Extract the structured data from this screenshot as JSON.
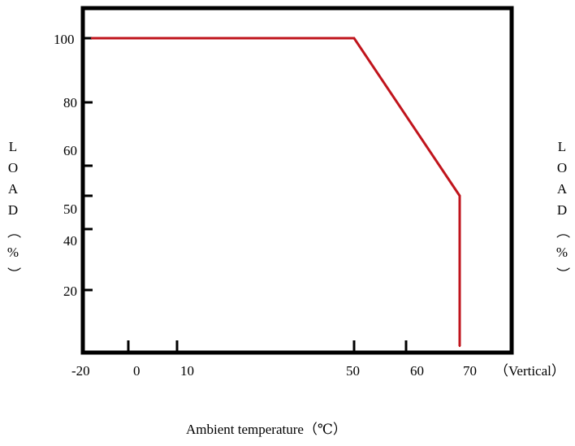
{
  "chart_data": {
    "type": "line",
    "title": "",
    "xlabel": "Ambient temperature（℃）",
    "ylabel_left": "LOAD（%）",
    "ylabel_right": "LOAD（%）",
    "x_orientation_label": "（Vertical）",
    "x_ticks": [
      "-20",
      "0",
      "10",
      "50",
      "60",
      "70"
    ],
    "y_ticks": [
      "100",
      "80",
      "60",
      "50",
      "40",
      "20"
    ],
    "series": [
      {
        "color": "#c0141c",
        "points": [
          {
            "x": -20,
            "y": 100
          },
          {
            "x": 50,
            "y": 100
          },
          {
            "x": 70,
            "y": 50
          },
          {
            "x": 70,
            "y": 0
          }
        ]
      }
    ],
    "grid": false,
    "legend": "none"
  }
}
